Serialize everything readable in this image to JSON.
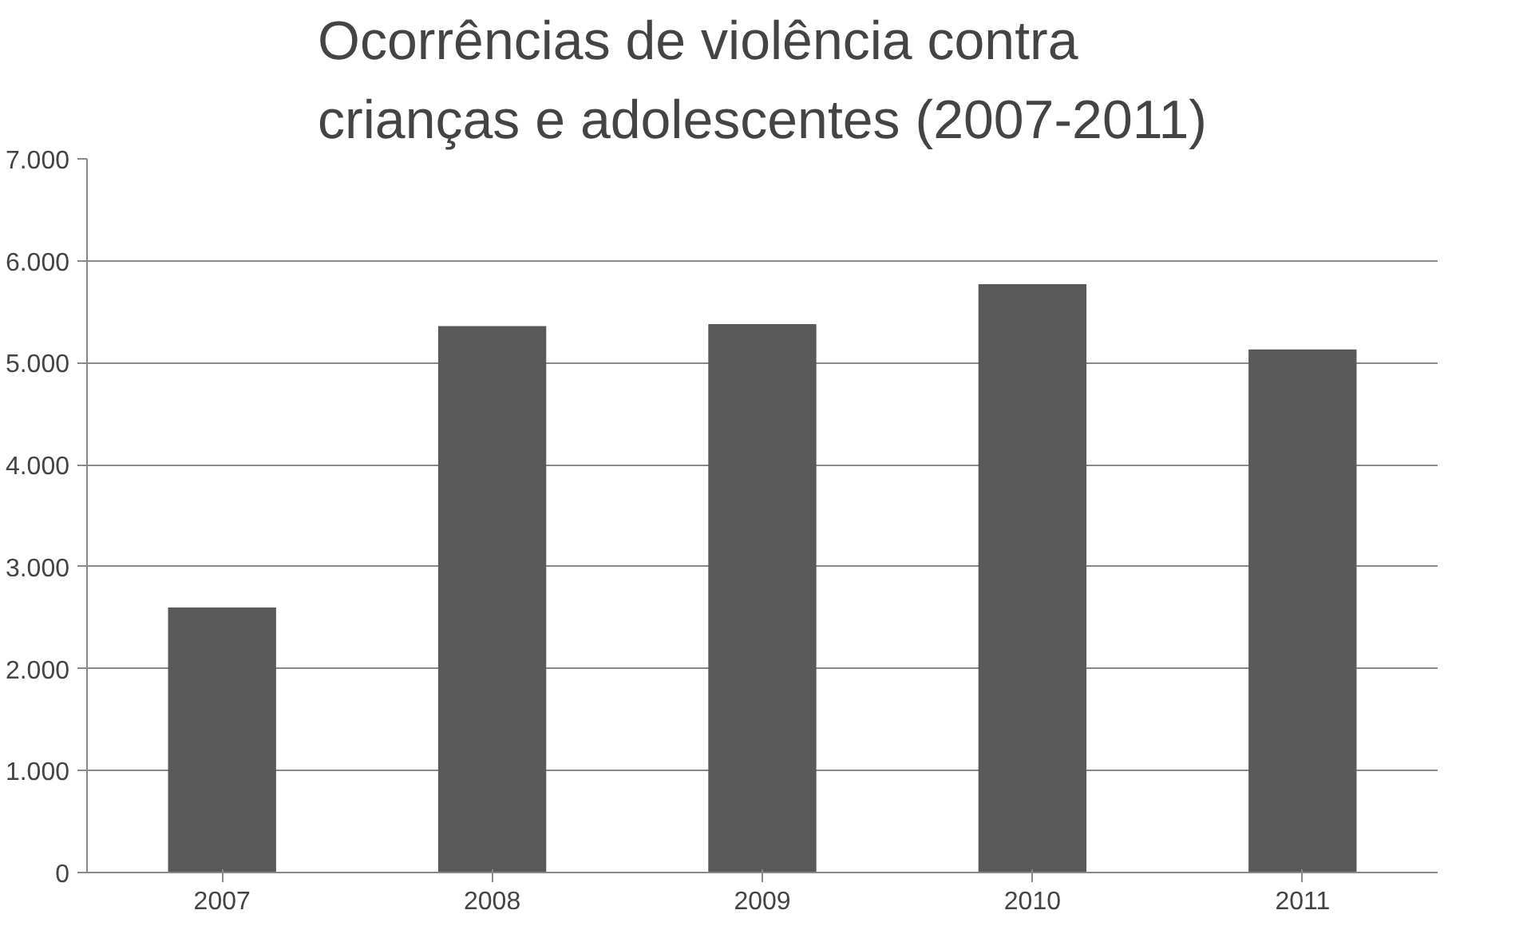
{
  "chart_data": {
    "type": "bar",
    "title": "Ocorrências de violência contra\ncrianças e adolescentes (2007-2011)",
    "categories": [
      "2007",
      "2008",
      "2009",
      "2010",
      "2011"
    ],
    "values": [
      2600,
      5360,
      5380,
      5770,
      5130
    ],
    "color": "#595959",
    "ylim": [
      0,
      7000
    ],
    "yticks": [
      {
        "value": 0,
        "label": "0"
      },
      {
        "value": 1000,
        "label": "1.000"
      },
      {
        "value": 2000,
        "label": "2.000"
      },
      {
        "value": 3000,
        "label": "3.000"
      },
      {
        "value": 4000,
        "label": "4.000"
      },
      {
        "value": 5000,
        "label": "5.000"
      },
      {
        "value": 6000,
        "label": "6.000"
      },
      {
        "value": 7000,
        "label": "7.000"
      }
    ],
    "grid": "y"
  }
}
